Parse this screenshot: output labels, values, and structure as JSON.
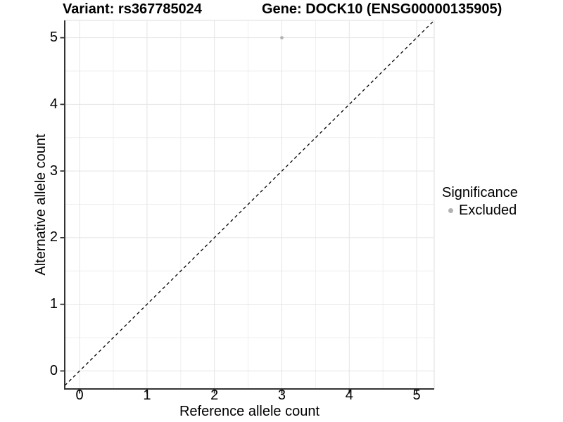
{
  "colors": {
    "background": "#ffffff",
    "grid_major": "#e4e4e4",
    "grid_minor": "#efefef",
    "panel_border": "#dcdcdc",
    "axis_line": "#333333",
    "text": "#000000",
    "point": "#b2b2b2"
  },
  "chart_data": {
    "type": "scatter",
    "titles": [
      {
        "text": "Variant: rs367785024"
      },
      {
        "text": "Gene: DOCK10 (ENSG00000135905)"
      }
    ],
    "xlabel": "Reference allele count",
    "ylabel": "Alternative allele count",
    "xlim": [
      -0.22,
      5.26
    ],
    "ylim": [
      -0.27,
      5.26
    ],
    "xticks": [
      0,
      1,
      2,
      3,
      4,
      5
    ],
    "yticks": [
      0,
      1,
      2,
      3,
      4,
      5
    ],
    "xminor": [
      0.5,
      1.5,
      2.5,
      3.5,
      4.5
    ],
    "yminor": [
      0.5,
      1.5,
      2.5,
      3.5,
      4.5
    ],
    "grid": "major+minor",
    "reference_line": {
      "equation": "y = x",
      "style": "dashed",
      "color": "#000000"
    },
    "series": [
      {
        "name": "Excluded",
        "color": "#b2b2b2",
        "point_radius": 2.4,
        "points": [
          {
            "x": 3,
            "y": 5
          }
        ]
      }
    ],
    "legend": {
      "title": "Significance",
      "position": "right",
      "items": [
        {
          "label": "Excluded",
          "color": "#b2b2b2"
        }
      ]
    }
  }
}
